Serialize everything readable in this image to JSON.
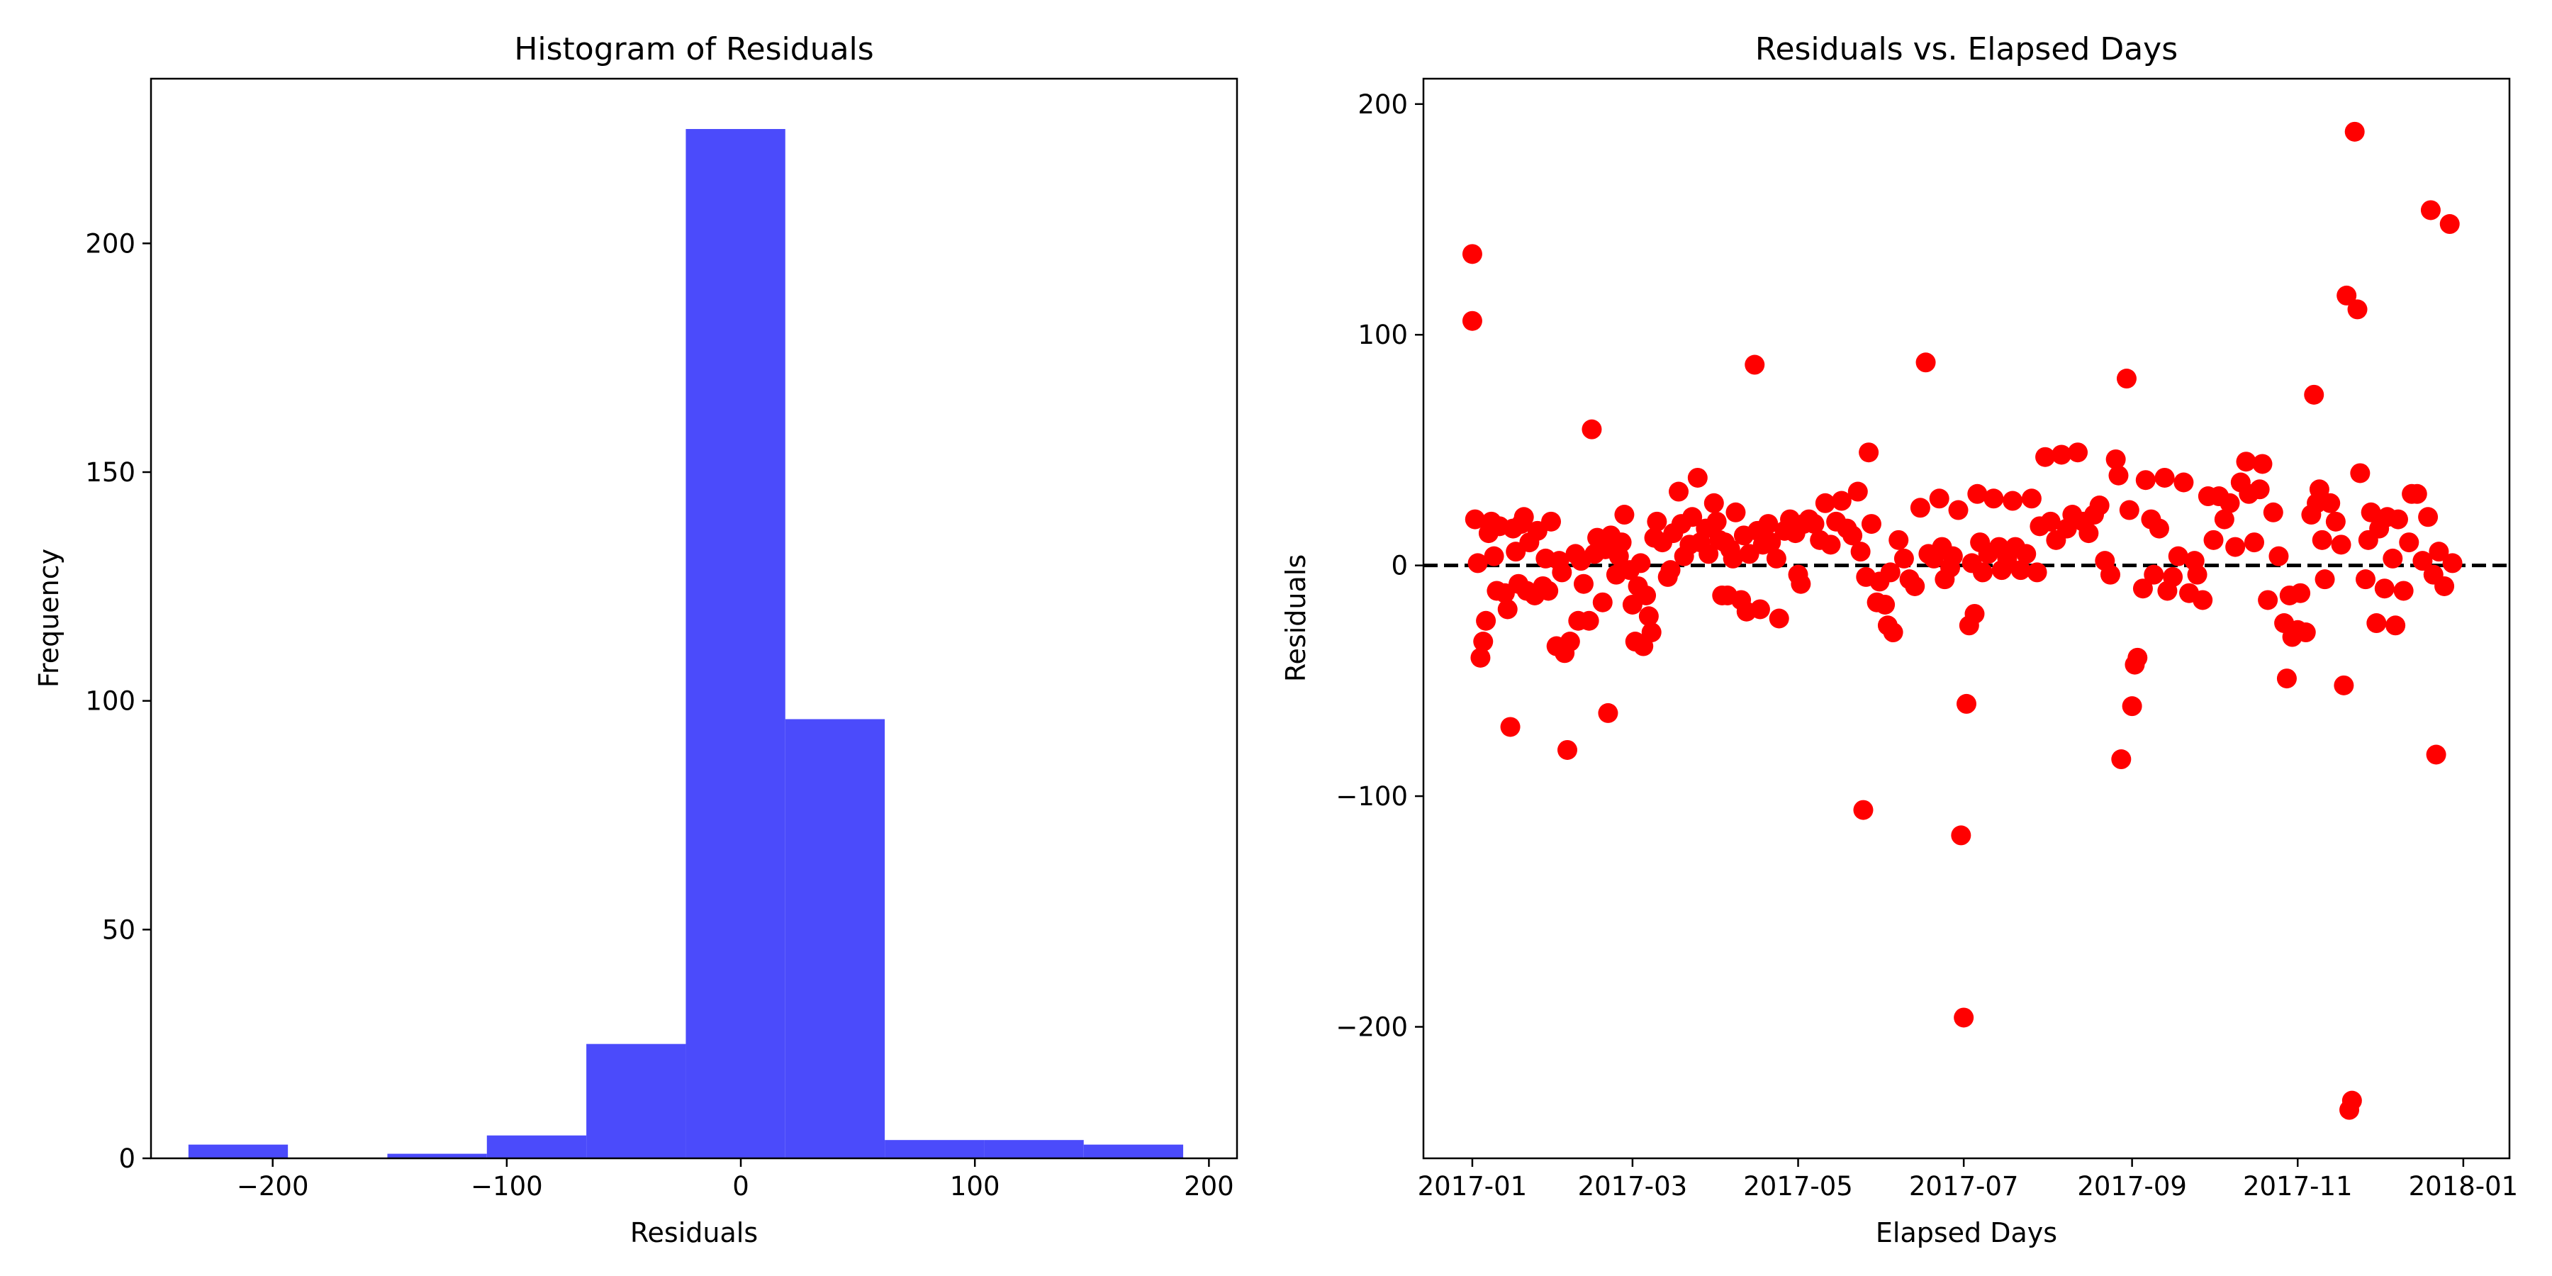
{
  "chart_data": [
    {
      "type": "histogram",
      "title": "Histogram of Residuals",
      "xlabel": "Residuals",
      "ylabel": "Frequency",
      "xlim": [
        -252,
        212
      ],
      "ylim": [
        0,
        236
      ],
      "xticks": [
        -200,
        -100,
        0,
        100,
        200
      ],
      "xtick_labels": [
        "−200",
        "−100",
        "0",
        "100",
        "200"
      ],
      "yticks": [
        0,
        50,
        100,
        150,
        200
      ],
      "ytick_labels": [
        "0",
        "50",
        "100",
        "150",
        "200"
      ],
      "color": "#4b4bfb",
      "grid": false,
      "bins": [
        {
          "x0": -236.0,
          "x1": -193.5,
          "count": 3
        },
        {
          "x0": -193.5,
          "x1": -151.0,
          "count": 0
        },
        {
          "x0": -151.0,
          "x1": -108.5,
          "count": 1
        },
        {
          "x0": -108.5,
          "x1": -66.0,
          "count": 5
        },
        {
          "x0": -66.0,
          "x1": -23.5,
          "count": 25
        },
        {
          "x0": -23.5,
          "x1": 19.0,
          "count": 225
        },
        {
          "x0": 19.0,
          "x1": 61.5,
          "count": 96
        },
        {
          "x0": 61.5,
          "x1": 104.0,
          "count": 4
        },
        {
          "x0": 104.0,
          "x1": 146.5,
          "count": 4
        },
        {
          "x0": 146.5,
          "x1": 189.0,
          "count": 3
        }
      ]
    },
    {
      "type": "scatter",
      "title": "Residuals vs. Elapsed Days",
      "xlabel": "Elapsed Days",
      "ylabel": "Residuals",
      "xlim": [
        "2016-12-14",
        "2018-01-18"
      ],
      "ylim": [
        -257,
        211
      ],
      "xticks": [
        "2017-01-01",
        "2017-03-01",
        "2017-05-01",
        "2017-07-01",
        "2017-09-01",
        "2017-11-01",
        "2018-01-01"
      ],
      "xtick_labels": [
        "2017-01",
        "2017-03",
        "2017-05",
        "2017-07",
        "2017-09",
        "2017-11",
        "2018-01"
      ],
      "yticks": [
        -200,
        -100,
        0,
        100,
        200
      ],
      "ytick_labels": [
        "−200",
        "−100",
        "0",
        "100",
        "200"
      ],
      "marker_color": "#ff0000",
      "reference_line": {
        "y": 0,
        "style": "dashed",
        "color": "#000000"
      },
      "grid": false,
      "points": [
        [
          "2017-01-01",
          135
        ],
        [
          "2017-01-01",
          106
        ],
        [
          "2017-01-02",
          20
        ],
        [
          "2017-01-03",
          1
        ],
        [
          "2017-01-04",
          -40
        ],
        [
          "2017-01-05",
          -33
        ],
        [
          "2017-01-06",
          -24
        ],
        [
          "2017-01-07",
          14
        ],
        [
          "2017-01-08",
          19
        ],
        [
          "2017-01-09",
          4
        ],
        [
          "2017-01-10",
          -11
        ],
        [
          "2017-01-11",
          17
        ],
        [
          "2017-01-13",
          -12
        ],
        [
          "2017-01-14",
          -19
        ],
        [
          "2017-01-15",
          -70
        ],
        [
          "2017-01-16",
          16
        ],
        [
          "2017-01-17",
          6
        ],
        [
          "2017-01-18",
          -8
        ],
        [
          "2017-01-19",
          18
        ],
        [
          "2017-01-20",
          21
        ],
        [
          "2017-01-21",
          -11
        ],
        [
          "2017-01-22",
          10
        ],
        [
          "2017-01-24",
          -13
        ],
        [
          "2017-01-25",
          15
        ],
        [
          "2017-01-27",
          -9
        ],
        [
          "2017-01-28",
          3
        ],
        [
          "2017-01-29",
          -11
        ],
        [
          "2017-01-30",
          19
        ],
        [
          "2017-02-01",
          -35
        ],
        [
          "2017-02-02",
          2
        ],
        [
          "2017-02-03",
          -3
        ],
        [
          "2017-02-04",
          -38
        ],
        [
          "2017-02-05",
          -80
        ],
        [
          "2017-02-06",
          -33
        ],
        [
          "2017-02-08",
          5
        ],
        [
          "2017-02-09",
          -24
        ],
        [
          "2017-02-10",
          2
        ],
        [
          "2017-02-11",
          -8
        ],
        [
          "2017-02-13",
          -24
        ],
        [
          "2017-02-14",
          59
        ],
        [
          "2017-02-15",
          5
        ],
        [
          "2017-02-16",
          12
        ],
        [
          "2017-02-18",
          -16
        ],
        [
          "2017-02-19",
          7
        ],
        [
          "2017-02-20",
          -64
        ],
        [
          "2017-02-21",
          13
        ],
        [
          "2017-02-23",
          -4
        ],
        [
          "2017-02-24",
          4
        ],
        [
          "2017-02-25",
          10
        ],
        [
          "2017-02-26",
          22
        ],
        [
          "2017-02-28",
          -2
        ],
        [
          "2017-03-01",
          -17
        ],
        [
          "2017-03-02",
          -33
        ],
        [
          "2017-03-03",
          -9
        ],
        [
          "2017-03-04",
          1
        ],
        [
          "2017-03-05",
          -35
        ],
        [
          "2017-03-06",
          -13
        ],
        [
          "2017-03-07",
          -22
        ],
        [
          "2017-03-08",
          -29
        ],
        [
          "2017-03-09",
          12
        ],
        [
          "2017-03-10",
          19
        ],
        [
          "2017-03-12",
          10
        ],
        [
          "2017-03-14",
          -5
        ],
        [
          "2017-03-15",
          -2
        ],
        [
          "2017-03-16",
          14
        ],
        [
          "2017-03-18",
          32
        ],
        [
          "2017-03-19",
          18
        ],
        [
          "2017-03-20",
          4
        ],
        [
          "2017-03-22",
          9
        ],
        [
          "2017-03-23",
          21
        ],
        [
          "2017-03-25",
          38
        ],
        [
          "2017-03-26",
          10
        ],
        [
          "2017-03-28",
          16
        ],
        [
          "2017-03-29",
          5
        ],
        [
          "2017-03-31",
          27
        ],
        [
          "2017-04-01",
          19
        ],
        [
          "2017-04-02",
          11
        ],
        [
          "2017-04-03",
          -13
        ],
        [
          "2017-04-04",
          10
        ],
        [
          "2017-04-05",
          -13
        ],
        [
          "2017-04-06",
          7
        ],
        [
          "2017-04-07",
          3
        ],
        [
          "2017-04-08",
          23
        ],
        [
          "2017-04-10",
          -15
        ],
        [
          "2017-04-11",
          13
        ],
        [
          "2017-04-12",
          -20
        ],
        [
          "2017-04-13",
          5
        ],
        [
          "2017-04-15",
          87
        ],
        [
          "2017-04-16",
          15
        ],
        [
          "2017-04-17",
          -19
        ],
        [
          "2017-04-18",
          9
        ],
        [
          "2017-04-20",
          18
        ],
        [
          "2017-04-21",
          10
        ],
        [
          "2017-04-23",
          3
        ],
        [
          "2017-04-24",
          -23
        ],
        [
          "2017-04-26",
          15
        ],
        [
          "2017-04-28",
          20
        ],
        [
          "2017-04-30",
          14
        ],
        [
          "2017-05-01",
          -4
        ],
        [
          "2017-05-02",
          -8
        ],
        [
          "2017-05-03",
          18
        ],
        [
          "2017-05-05",
          20
        ],
        [
          "2017-05-07",
          18
        ],
        [
          "2017-05-09",
          11
        ],
        [
          "2017-05-11",
          27
        ],
        [
          "2017-05-13",
          9
        ],
        [
          "2017-05-15",
          19
        ],
        [
          "2017-05-17",
          28
        ],
        [
          "2017-05-19",
          16
        ],
        [
          "2017-05-21",
          13
        ],
        [
          "2017-05-23",
          32
        ],
        [
          "2017-05-24",
          6
        ],
        [
          "2017-05-25",
          -106
        ],
        [
          "2017-05-26",
          -5
        ],
        [
          "2017-05-27",
          49
        ],
        [
          "2017-05-28",
          18
        ],
        [
          "2017-05-30",
          -16
        ],
        [
          "2017-05-31",
          -7
        ],
        [
          "2017-06-02",
          -17
        ],
        [
          "2017-06-03",
          -26
        ],
        [
          "2017-06-04",
          -3
        ],
        [
          "2017-06-05",
          -29
        ],
        [
          "2017-06-07",
          11
        ],
        [
          "2017-06-09",
          3
        ],
        [
          "2017-06-11",
          -6
        ],
        [
          "2017-06-13",
          -9
        ],
        [
          "2017-06-15",
          25
        ],
        [
          "2017-06-17",
          88
        ],
        [
          "2017-06-18",
          5
        ],
        [
          "2017-06-20",
          3
        ],
        [
          "2017-06-22",
          29
        ],
        [
          "2017-06-23",
          8
        ],
        [
          "2017-06-24",
          -6
        ],
        [
          "2017-06-26",
          -1
        ],
        [
          "2017-06-27",
          4
        ],
        [
          "2017-06-29",
          24
        ],
        [
          "2017-06-30",
          -117
        ],
        [
          "2017-07-01",
          -196
        ],
        [
          "2017-07-02",
          -60
        ],
        [
          "2017-07-03",
          -26
        ],
        [
          "2017-07-04",
          1
        ],
        [
          "2017-07-05",
          -21
        ],
        [
          "2017-07-06",
          31
        ],
        [
          "2017-07-07",
          10
        ],
        [
          "2017-07-08",
          -3
        ],
        [
          "2017-07-10",
          5
        ],
        [
          "2017-07-12",
          29
        ],
        [
          "2017-07-14",
          8
        ],
        [
          "2017-07-15",
          -2
        ],
        [
          "2017-07-17",
          3
        ],
        [
          "2017-07-19",
          28
        ],
        [
          "2017-07-20",
          8
        ],
        [
          "2017-07-22",
          -2
        ],
        [
          "2017-07-24",
          5
        ],
        [
          "2017-07-26",
          29
        ],
        [
          "2017-07-28",
          -3
        ],
        [
          "2017-07-29",
          17
        ],
        [
          "2017-07-31",
          47
        ],
        [
          "2017-08-02",
          19
        ],
        [
          "2017-08-04",
          11
        ],
        [
          "2017-08-06",
          48
        ],
        [
          "2017-08-08",
          16
        ],
        [
          "2017-08-10",
          22
        ],
        [
          "2017-08-12",
          49
        ],
        [
          "2017-08-14",
          19
        ],
        [
          "2017-08-16",
          14
        ],
        [
          "2017-08-18",
          22
        ],
        [
          "2017-08-20",
          26
        ],
        [
          "2017-08-22",
          2
        ],
        [
          "2017-08-24",
          -4
        ],
        [
          "2017-08-26",
          46
        ],
        [
          "2017-08-27",
          39
        ],
        [
          "2017-08-28",
          -84
        ],
        [
          "2017-08-30",
          81
        ],
        [
          "2017-08-31",
          24
        ],
        [
          "2017-09-01",
          -61
        ],
        [
          "2017-09-02",
          -43
        ],
        [
          "2017-09-03",
          -40
        ],
        [
          "2017-09-05",
          -10
        ],
        [
          "2017-09-06",
          37
        ],
        [
          "2017-09-08",
          20
        ],
        [
          "2017-09-09",
          -4
        ],
        [
          "2017-09-11",
          16
        ],
        [
          "2017-09-13",
          38
        ],
        [
          "2017-09-14",
          -11
        ],
        [
          "2017-09-16",
          -5
        ],
        [
          "2017-09-18",
          4
        ],
        [
          "2017-09-20",
          36
        ],
        [
          "2017-09-22",
          -12
        ],
        [
          "2017-09-24",
          2
        ],
        [
          "2017-09-25",
          -4
        ],
        [
          "2017-09-27",
          -15
        ],
        [
          "2017-09-29",
          30
        ],
        [
          "2017-10-01",
          11
        ],
        [
          "2017-10-03",
          30
        ],
        [
          "2017-10-05",
          20
        ],
        [
          "2017-10-07",
          27
        ],
        [
          "2017-10-09",
          8
        ],
        [
          "2017-10-11",
          36
        ],
        [
          "2017-10-13",
          45
        ],
        [
          "2017-10-14",
          31
        ],
        [
          "2017-10-16",
          10
        ],
        [
          "2017-10-18",
          33
        ],
        [
          "2017-10-19",
          44
        ],
        [
          "2017-10-21",
          -15
        ],
        [
          "2017-10-23",
          23
        ],
        [
          "2017-10-25",
          4
        ],
        [
          "2017-10-27",
          -25
        ],
        [
          "2017-10-28",
          -49
        ],
        [
          "2017-10-29",
          -13
        ],
        [
          "2017-10-30",
          -31
        ],
        [
          "2017-11-01",
          -28
        ],
        [
          "2017-11-02",
          -12
        ],
        [
          "2017-11-04",
          -29
        ],
        [
          "2017-11-06",
          22
        ],
        [
          "2017-11-07",
          74
        ],
        [
          "2017-11-08",
          27
        ],
        [
          "2017-11-09",
          33
        ],
        [
          "2017-11-10",
          11
        ],
        [
          "2017-11-11",
          -6
        ],
        [
          "2017-11-13",
          27
        ],
        [
          "2017-11-15",
          19
        ],
        [
          "2017-11-17",
          9
        ],
        [
          "2017-11-18",
          -52
        ],
        [
          "2017-11-19",
          117
        ],
        [
          "2017-11-20",
          -236
        ],
        [
          "2017-11-21",
          -232
        ],
        [
          "2017-11-22",
          188
        ],
        [
          "2017-11-23",
          111
        ],
        [
          "2017-11-24",
          40
        ],
        [
          "2017-11-26",
          -6
        ],
        [
          "2017-11-27",
          11
        ],
        [
          "2017-11-28",
          23
        ],
        [
          "2017-11-30",
          -25
        ],
        [
          "2017-12-01",
          16
        ],
        [
          "2017-12-03",
          -10
        ],
        [
          "2017-12-04",
          21
        ],
        [
          "2017-12-06",
          3
        ],
        [
          "2017-12-07",
          -26
        ],
        [
          "2017-12-08",
          20
        ],
        [
          "2017-12-10",
          -11
        ],
        [
          "2017-12-12",
          10
        ],
        [
          "2017-12-13",
          31
        ],
        [
          "2017-12-15",
          31
        ],
        [
          "2017-12-17",
          2
        ],
        [
          "2017-12-19",
          21
        ],
        [
          "2017-12-20",
          154
        ],
        [
          "2017-12-21",
          -4
        ],
        [
          "2017-12-22",
          -82
        ],
        [
          "2017-12-23",
          6
        ],
        [
          "2017-12-25",
          -9
        ],
        [
          "2017-12-27",
          148
        ],
        [
          "2017-12-28",
          1
        ]
      ]
    }
  ]
}
